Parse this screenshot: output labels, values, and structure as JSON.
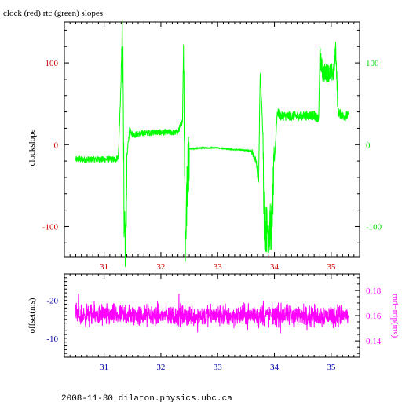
{
  "chart_data": [
    {
      "type": "line",
      "title": "clock (red) rtc (green) slopes",
      "ylabel": "clockslope",
      "xlabel": "",
      "xlim": [
        30.3,
        35.5
      ],
      "ylim": [
        -137,
        150
      ],
      "x_ticks": [
        31,
        32,
        33,
        34,
        35
      ],
      "y_ticks_left": [
        -100,
        0,
        100
      ],
      "y_ticks_right": [
        -100,
        0,
        100
      ],
      "colors": {
        "axis": "#000000",
        "x_tick_labels": "#cc0000",
        "y_left_tick_labels": "#cc0000",
        "y_right_tick_labels": "#00dd00"
      },
      "grid": false,
      "series": [
        {
          "color": "#00ff00",
          "points": [
            [
              30.5,
              -18
            ],
            [
              30.6,
              -18
            ],
            [
              30.7,
              -18
            ],
            [
              30.8,
              -18
            ],
            [
              30.9,
              -18
            ],
            [
              31.0,
              -18
            ],
            [
              31.1,
              -18
            ],
            [
              31.2,
              -18
            ],
            [
              31.25,
              -15
            ],
            [
              31.3,
              80
            ],
            [
              31.32,
              140
            ],
            [
              31.34,
              60
            ],
            [
              31.35,
              -120
            ],
            [
              31.38,
              -120
            ],
            [
              31.4,
              -15
            ],
            [
              31.45,
              20
            ],
            [
              31.5,
              12
            ],
            [
              31.7,
              14
            ],
            [
              31.9,
              15
            ],
            [
              32.1,
              15
            ],
            [
              32.3,
              15
            ],
            [
              32.38,
              30
            ],
            [
              32.4,
              130
            ],
            [
              32.43,
              -125
            ],
            [
              32.47,
              -40
            ],
            [
              32.5,
              -5
            ],
            [
              32.55,
              -5
            ],
            [
              32.7,
              -4
            ],
            [
              32.9,
              -4
            ],
            [
              33.0,
              -4
            ],
            [
              33.1,
              -5
            ],
            [
              33.3,
              -6
            ],
            [
              33.5,
              -7
            ],
            [
              33.6,
              -8
            ],
            [
              33.68,
              -20
            ],
            [
              33.72,
              -50
            ],
            [
              33.75,
              90
            ],
            [
              33.8,
              10
            ],
            [
              33.82,
              -100
            ],
            [
              33.85,
              -103
            ],
            [
              33.9,
              -103
            ],
            [
              33.95,
              -100
            ],
            [
              34.0,
              -20
            ],
            [
              34.05,
              40
            ],
            [
              34.1,
              35
            ],
            [
              34.3,
              35
            ],
            [
              34.5,
              35
            ],
            [
              34.7,
              36
            ],
            [
              34.78,
              30
            ],
            [
              34.8,
              110
            ],
            [
              34.85,
              88
            ],
            [
              34.9,
              88
            ],
            [
              35.0,
              88
            ],
            [
              35.05,
              88
            ],
            [
              35.08,
              120
            ],
            [
              35.12,
              40
            ],
            [
              35.2,
              35
            ],
            [
              35.3,
              35
            ]
          ]
        }
      ]
    },
    {
      "type": "line",
      "title": "",
      "ylabel_left": "offset(ms)",
      "ylabel_right": "rnd−trip(ms)",
      "xlim": [
        30.3,
        35.5
      ],
      "ylim_left": [
        -5,
        -27
      ],
      "ylim_right": [
        0.127,
        0.193
      ],
      "x_ticks": [
        31,
        32,
        33,
        34,
        35
      ],
      "y_ticks_left": [
        -20,
        -10
      ],
      "y_ticks_right": [
        0.14,
        0.16,
        0.18
      ],
      "y_tick_right_labels": [
        "0.14",
        "0.16",
        "0.18"
      ],
      "colors": {
        "axis": "#000000",
        "x_tick_labels": "#0000aa",
        "y_left_tick_labels": "#0000aa",
        "y_right_tick_labels": "#ff00ff"
      },
      "grid": false,
      "series": [
        {
          "color": "#ff00ff",
          "mean_right": 0.16,
          "spread_right": 0.013,
          "x_range": [
            30.5,
            35.3
          ]
        }
      ]
    }
  ],
  "footer": "2008-11-30  dilaton.physics.ubc.ca"
}
